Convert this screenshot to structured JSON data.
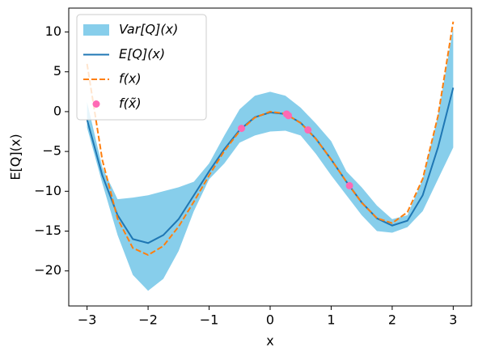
{
  "chart_data": {
    "type": "line",
    "x_label": "x",
    "y_label": "E[Q](x)",
    "x": [
      -3,
      -2.75,
      -2.5,
      -2.25,
      -2,
      -1.75,
      -1.5,
      -1.25,
      -1,
      -0.75,
      -0.5,
      -0.25,
      0,
      0.25,
      0.5,
      0.75,
      1,
      1.25,
      1.5,
      1.75,
      2,
      2.25,
      2.5,
      2.75,
      3
    ],
    "series": [
      {
        "name": "Var[Q](x)",
        "type": "band",
        "color": "#87ceeb",
        "upper": [
          1.2,
          -7,
          -11,
          -10.8,
          -10.5,
          -10,
          -9.5,
          -8.8,
          -6.5,
          -3,
          0.3,
          2,
          2.5,
          2,
          0.5,
          -1.5,
          -3.7,
          -7.5,
          -9.5,
          -11.8,
          -13.5,
          -13,
          -8.5,
          -0.5,
          10.5
        ],
        "lower": [
          -2,
          -9,
          -15.5,
          -20.5,
          -22.5,
          -21,
          -17.5,
          -12.5,
          -8.5,
          -6.5,
          -3.9,
          -3,
          -2.5,
          -2.4,
          -3,
          -5.3,
          -8,
          -10.5,
          -13,
          -15,
          -15.2,
          -14.5,
          -12.5,
          -8.5,
          -4.5
        ]
      },
      {
        "name": "E[Q](x)",
        "type": "line",
        "color": "#1f77b4",
        "dash": "solid",
        "values": [
          -1,
          -8,
          -13,
          -16,
          -16.5,
          -15.5,
          -13.5,
          -10.5,
          -7.5,
          -4.7,
          -2.3,
          -0.7,
          -0.1,
          -0.3,
          -1.4,
          -3.4,
          -6,
          -8.8,
          -11.4,
          -13.4,
          -14.3,
          -13.7,
          -10.5,
          -4.5,
          3
        ]
      },
      {
        "name": "f(x)",
        "type": "line",
        "color": "#ff7f0e",
        "dash": "dashed",
        "values": [
          6,
          -6.06,
          -13.44,
          -17.12,
          -18,
          -16.87,
          -14.44,
          -11.31,
          -8,
          -4.93,
          -2.44,
          -0.75,
          0,
          -0.25,
          -1.44,
          -3.43,
          -6,
          -8.81,
          -11.44,
          -13.37,
          -14,
          -12.62,
          -8.44,
          -0.56,
          11.3
        ]
      },
      {
        "name": "f(x̃)",
        "type": "scatter",
        "color": "#ff69b4",
        "x": [
          -0.47,
          0.27,
          0.3,
          0.62,
          1.3
        ],
        "values": [
          -2.1,
          -0.3,
          -0.5,
          -2.3,
          -9.3
        ]
      }
    ],
    "xlim": [
      -3.3,
      3.3
    ],
    "ylim": [
      -24.4,
      13
    ],
    "xticks": [
      {
        "value": -3,
        "label": "−3"
      },
      {
        "value": -2,
        "label": "−2"
      },
      {
        "value": -1,
        "label": "−1"
      },
      0,
      1,
      2,
      3
    ],
    "yticks": [
      {
        "value": -20,
        "label": "−20"
      },
      {
        "value": -15,
        "label": "−15"
      },
      {
        "value": -10,
        "label": "−10"
      },
      {
        "value": -5,
        "label": "−5"
      },
      0,
      5,
      10
    ],
    "legend": "upper left"
  }
}
